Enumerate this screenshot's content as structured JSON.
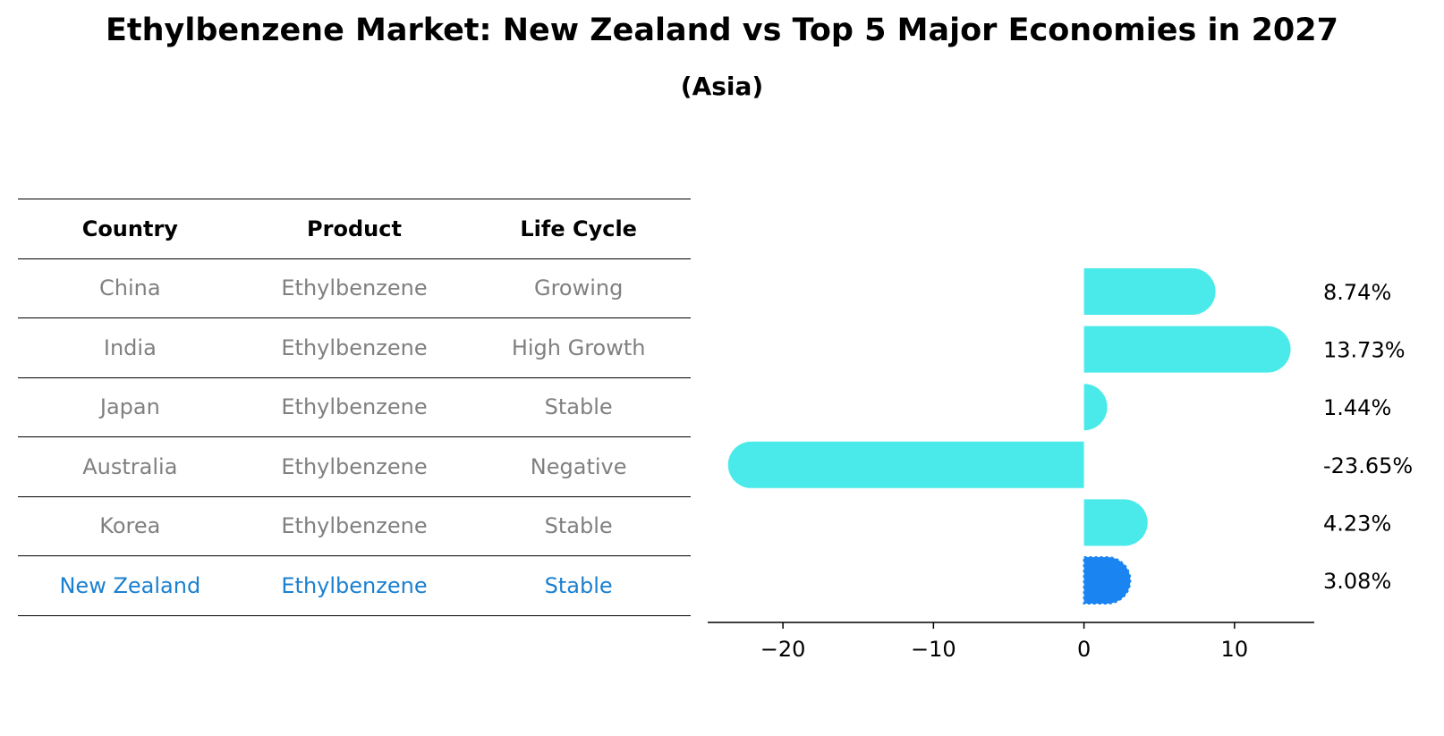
{
  "title": "Ethylbenzene Market: New Zealand vs Top 5 Major Economies in 2027",
  "subtitle": "(Asia)",
  "table": {
    "headers": [
      "Country",
      "Product",
      "Life Cycle"
    ],
    "rows": [
      {
        "country": "China",
        "product": "Ethylbenzene",
        "life_cycle": "Growing"
      },
      {
        "country": "India",
        "product": "Ethylbenzene",
        "life_cycle": "High Growth"
      },
      {
        "country": "Japan",
        "product": "Ethylbenzene",
        "life_cycle": "Stable"
      },
      {
        "country": "Australia",
        "product": "Ethylbenzene",
        "life_cycle": "Negative"
      },
      {
        "country": "Korea",
        "product": "Ethylbenzene",
        "life_cycle": "Stable"
      },
      {
        "country": "New Zealand",
        "product": "Ethylbenzene",
        "life_cycle": "Stable"
      }
    ],
    "highlight_row": "New Zealand"
  },
  "colors": {
    "bar": "#4beaea",
    "highlight_bar": "#1a85f0",
    "muted_text": "#808080",
    "highlight_text": "#1a80d0"
  },
  "chart_data": {
    "type": "bar",
    "orientation": "horizontal",
    "categories": [
      "China",
      "India",
      "Japan",
      "Australia",
      "Korea",
      "New Zealand"
    ],
    "values": [
      8.74,
      13.73,
      1.44,
      -23.65,
      4.23,
      3.08
    ],
    "value_labels": [
      "8.74%",
      "13.73%",
      "1.44%",
      "-23.65%",
      "4.23%",
      "3.08%"
    ],
    "highlight_category": "New Zealand",
    "xlim": [
      -25,
      15.3
    ],
    "xticks": [
      -20,
      -10,
      0,
      10
    ],
    "xtick_labels": [
      "−20",
      "−10",
      "0",
      "10"
    ],
    "grid": false
  }
}
